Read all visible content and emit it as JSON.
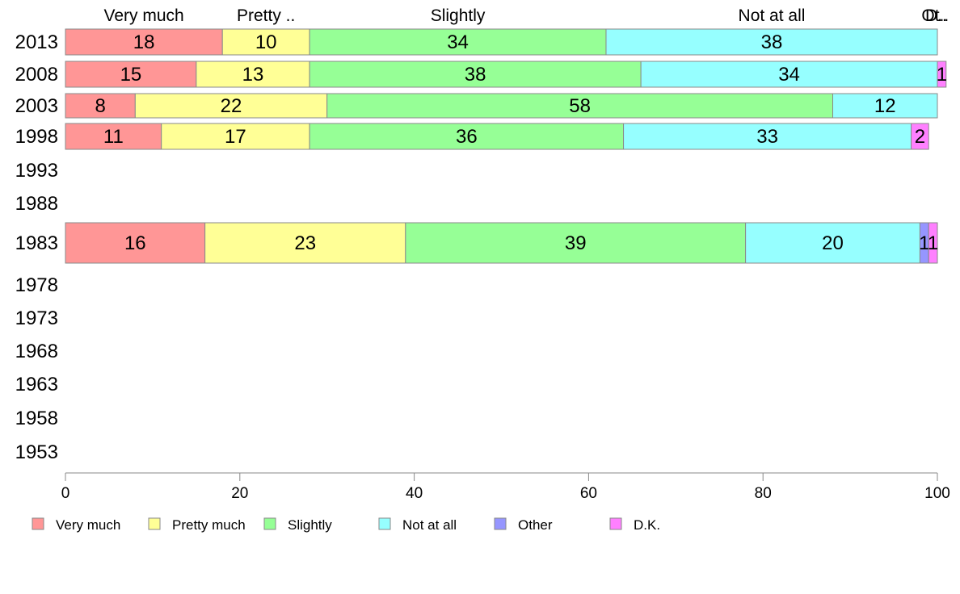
{
  "chart_data": {
    "type": "bar",
    "orientation": "horizontal",
    "stacked": true,
    "xlim": [
      0,
      100
    ],
    "x_ticks": [
      "0",
      "20",
      "40",
      "60",
      "80",
      "100"
    ],
    "categories": [
      "2013",
      "2008",
      "2003",
      "1998",
      "1993",
      "1988",
      "1983",
      "1978",
      "1973",
      "1968",
      "1963",
      "1958",
      "1953"
    ],
    "top_labels": [
      "Very much",
      "Pretty ..",
      "Slightly",
      "Not at all",
      "D..",
      "Ot.."
    ],
    "series": [
      {
        "name": "Very much",
        "color": "#ff9696",
        "values": [
          18,
          15,
          8,
          11,
          null,
          null,
          16,
          null,
          null,
          null,
          null,
          null,
          null
        ]
      },
      {
        "name": "Pretty much",
        "color": "#ffff96",
        "values": [
          10,
          13,
          22,
          17,
          null,
          null,
          23,
          null,
          null,
          null,
          null,
          null,
          null
        ]
      },
      {
        "name": "Slightly",
        "color": "#96ff96",
        "values": [
          34,
          38,
          58,
          36,
          null,
          null,
          39,
          null,
          null,
          null,
          null,
          null,
          null
        ]
      },
      {
        "name": "Not at all",
        "color": "#96ffff",
        "values": [
          38,
          34,
          12,
          33,
          null,
          null,
          20,
          null,
          null,
          null,
          null,
          null,
          null
        ]
      },
      {
        "name": "Other",
        "color": "#9696ff",
        "values": [
          0,
          0,
          0,
          0,
          null,
          null,
          1,
          null,
          null,
          null,
          null,
          null,
          null
        ]
      },
      {
        "name": "D.K.",
        "color": "#ff80ff",
        "values": [
          0,
          1,
          0,
          2,
          null,
          null,
          1,
          null,
          null,
          null,
          null,
          null,
          null
        ]
      }
    ],
    "legend": {
      "placement": "bottom"
    },
    "grid": false
  }
}
